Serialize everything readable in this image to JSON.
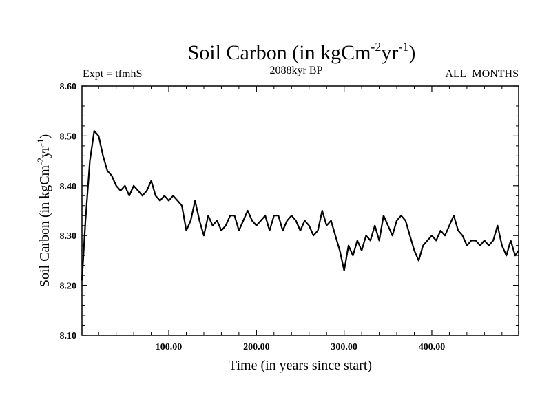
{
  "chart_data": {
    "type": "line",
    "title": "Soil Carbon (in kgCm",
    "title_sup1": "-2",
    "title_mid": "yr",
    "title_sup2": "-1",
    "title_end": ")",
    "subtitle_left": "Expt = tfmhS",
    "subtitle_center": "2088kyr BP",
    "subtitle_right": "ALL_MONTHS",
    "xlabel": "Time (in years since start)",
    "ylabel": "Soil Carbon (in kgCm",
    "ylabel_sup1": "-2",
    "ylabel_mid": "yr",
    "ylabel_sup2": "-1",
    "ylabel_end": ")",
    "xlim": [
      1,
      499
    ],
    "ylim": [
      8.1,
      8.6
    ],
    "xticks": [
      100,
      200,
      300,
      400
    ],
    "xtick_labels": [
      "100.00",
      "200.00",
      "300.00",
      "400.00"
    ],
    "yticks": [
      8.1,
      8.2,
      8.3,
      8.4,
      8.5,
      8.6
    ],
    "ytick_labels": [
      "8.10",
      "8.20",
      "8.30",
      "8.40",
      "8.50",
      "8.60"
    ],
    "series": [
      {
        "name": "Soil Carbon",
        "color": "#000000",
        "x": [
          1,
          5,
          10,
          15,
          20,
          25,
          30,
          35,
          40,
          45,
          50,
          55,
          60,
          65,
          70,
          75,
          80,
          85,
          90,
          95,
          100,
          105,
          110,
          115,
          120,
          125,
          130,
          135,
          140,
          145,
          150,
          155,
          160,
          165,
          170,
          175,
          180,
          185,
          190,
          195,
          200,
          205,
          210,
          215,
          220,
          225,
          230,
          235,
          240,
          245,
          250,
          255,
          260,
          265,
          270,
          275,
          280,
          285,
          290,
          295,
          300,
          305,
          310,
          315,
          320,
          325,
          330,
          335,
          340,
          345,
          350,
          355,
          360,
          365,
          370,
          375,
          380,
          385,
          390,
          395,
          400,
          405,
          410,
          415,
          420,
          425,
          430,
          435,
          440,
          445,
          450,
          455,
          460,
          465,
          470,
          475,
          480,
          485,
          490,
          495,
          499
        ],
        "values": [
          8.21,
          8.33,
          8.45,
          8.51,
          8.5,
          8.46,
          8.43,
          8.42,
          8.4,
          8.39,
          8.4,
          8.38,
          8.4,
          8.39,
          8.38,
          8.39,
          8.41,
          8.38,
          8.37,
          8.38,
          8.37,
          8.38,
          8.37,
          8.36,
          8.31,
          8.33,
          8.37,
          8.33,
          8.3,
          8.34,
          8.32,
          8.33,
          8.31,
          8.32,
          8.34,
          8.34,
          8.31,
          8.33,
          8.35,
          8.33,
          8.32,
          8.33,
          8.34,
          8.31,
          8.34,
          8.34,
          8.31,
          8.33,
          8.34,
          8.33,
          8.31,
          8.33,
          8.32,
          8.3,
          8.31,
          8.35,
          8.32,
          8.33,
          8.3,
          8.27,
          8.23,
          8.28,
          8.26,
          8.29,
          8.27,
          8.3,
          8.29,
          8.32,
          8.29,
          8.34,
          8.32,
          8.3,
          8.33,
          8.34,
          8.33,
          8.3,
          8.27,
          8.25,
          8.28,
          8.29,
          8.3,
          8.29,
          8.31,
          8.3,
          8.32,
          8.34,
          8.31,
          8.3,
          8.28,
          8.29,
          8.29,
          8.28,
          8.29,
          8.28,
          8.29,
          8.32,
          8.28,
          8.26,
          8.29,
          8.26,
          8.27
        ]
      }
    ]
  }
}
